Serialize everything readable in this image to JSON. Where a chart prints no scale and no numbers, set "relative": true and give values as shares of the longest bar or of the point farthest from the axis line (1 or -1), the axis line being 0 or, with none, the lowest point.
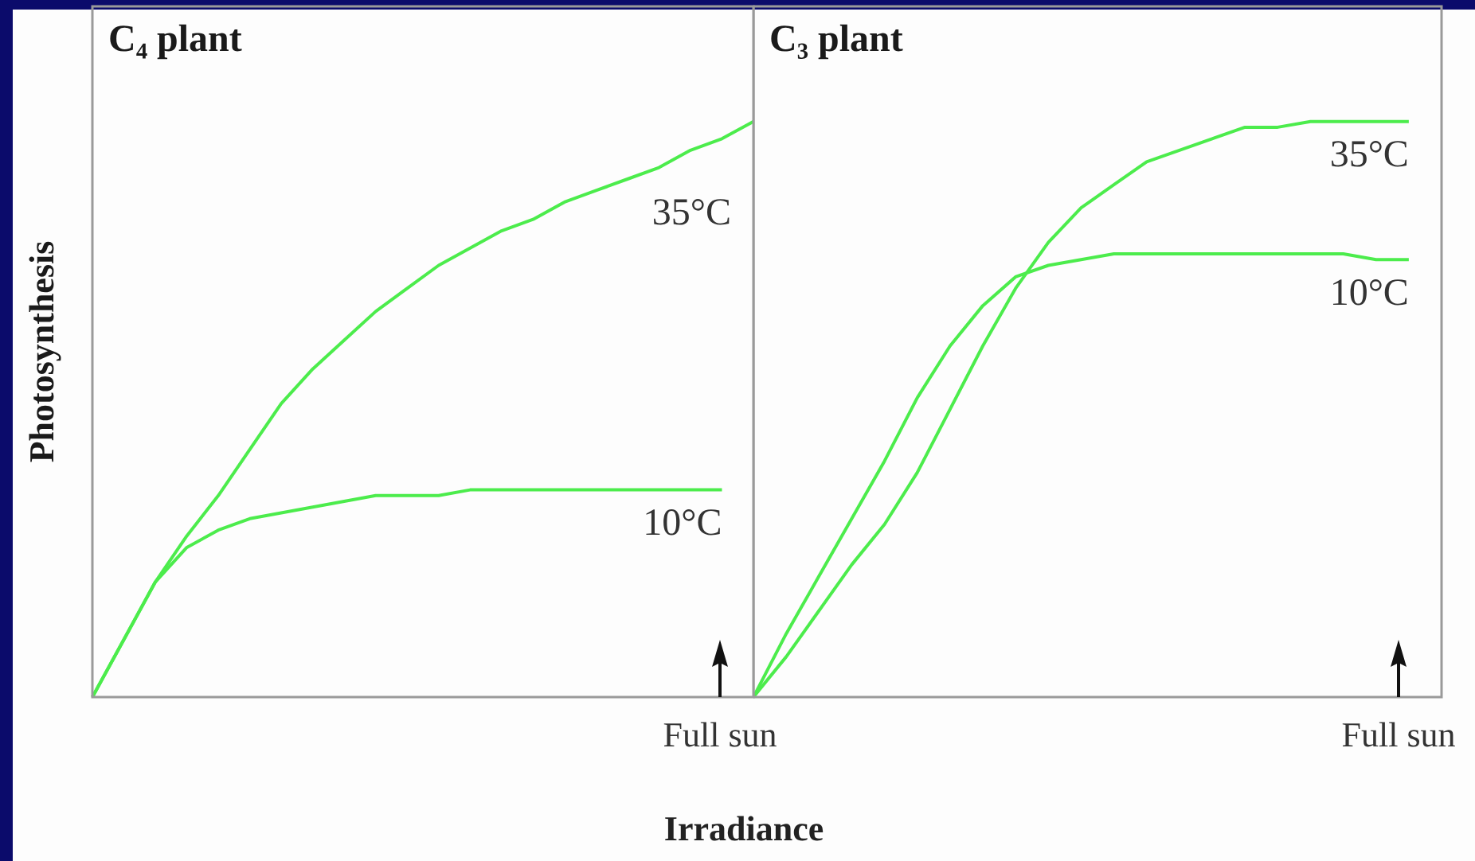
{
  "chart_data": [
    {
      "type": "line",
      "title": "C₄ plant",
      "ylabel": "Photosynthesis",
      "xlabel": "Irradiance",
      "relative": true,
      "marker": "none",
      "annotations": [
        "Full sun"
      ],
      "categories": [
        null,
        null,
        null,
        null,
        null,
        null,
        null,
        null,
        null,
        null,
        null,
        null,
        null,
        null,
        null,
        null,
        null,
        null,
        null,
        null,
        null,
        null
      ],
      "series": [
        {
          "name": "35°C",
          "color": "#4cec4c",
          "values": [
            0,
            0.1,
            0.2,
            0.28,
            0.35,
            0.43,
            0.51,
            0.57,
            0.62,
            0.67,
            0.71,
            0.75,
            0.78,
            0.81,
            0.83,
            0.86,
            0.88,
            0.9,
            0.92,
            0.95,
            0.97,
            1
          ]
        },
        {
          "name": "10°C",
          "color": "#4cec4c",
          "values": [
            0,
            0.1,
            0.2,
            0.26,
            0.29,
            0.31,
            0.32,
            0.33,
            0.34,
            0.35,
            0.35,
            0.35,
            0.36,
            0.36,
            0.36,
            0.36,
            0.36,
            0.36,
            0.36,
            0.36,
            0.36,
            null
          ]
        }
      ]
    },
    {
      "type": "line",
      "title": "C₃ plant",
      "relative": true,
      "marker": "none",
      "annotations": [
        "Full sun"
      ],
      "categories": [
        null,
        null,
        null,
        null,
        null,
        null,
        null,
        null,
        null,
        null,
        null,
        null,
        null,
        null,
        null,
        null,
        null,
        null,
        null,
        null,
        null,
        null
      ],
      "series": [
        {
          "name": "35°C",
          "color": "#4cec4c",
          "values": [
            0,
            0.07,
            0.15,
            0.23,
            0.3,
            0.39,
            0.5,
            0.61,
            0.71,
            0.79,
            0.85,
            0.89,
            0.93,
            0.95,
            0.97,
            0.99,
            0.99,
            1,
            1,
            1,
            1,
            null
          ]
        },
        {
          "name": "10°C",
          "color": "#4cec4c",
          "values": [
            0,
            0.11,
            0.21,
            0.31,
            0.41,
            0.52,
            0.61,
            0.68,
            0.73,
            0.75,
            0.76,
            0.77,
            0.77,
            0.77,
            0.77,
            0.77,
            0.77,
            0.77,
            0.77,
            0.76,
            0.76,
            null
          ]
        }
      ]
    }
  ]
}
